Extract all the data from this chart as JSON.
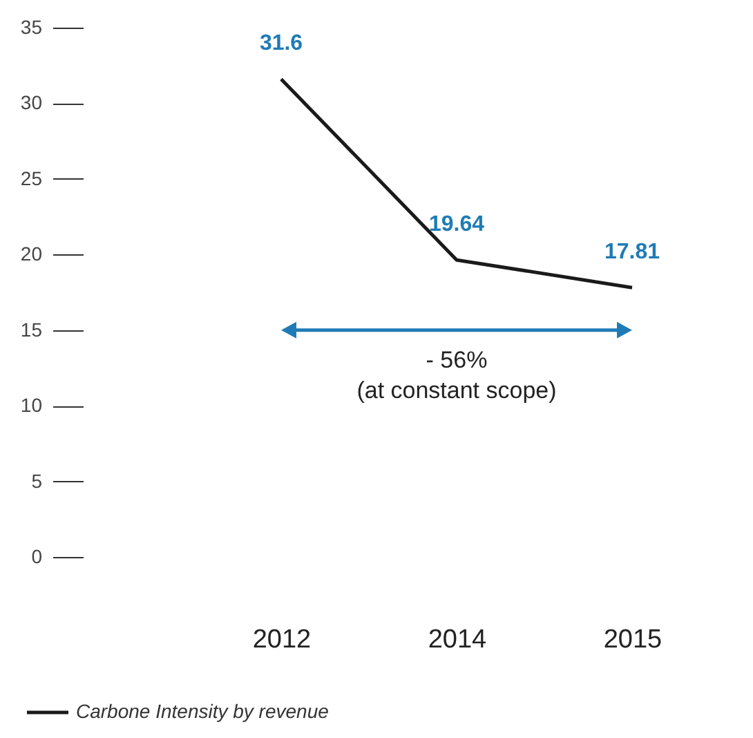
{
  "chart_data": {
    "type": "line",
    "categories": [
      "2012",
      "2014",
      "2015"
    ],
    "series": [
      {
        "name": "Carbone Intensity by revenue",
        "color": "#1a1a1a",
        "values": [
          31.6,
          19.64,
          17.81
        ]
      }
    ],
    "ylim": [
      0,
      35
    ],
    "yticks": [
      0,
      5,
      10,
      15,
      20,
      25,
      30,
      35
    ],
    "grid": false,
    "legend": "bottom left",
    "data_labels": true,
    "marker": "none",
    "line_style": "solid",
    "ref_lines": [
      {
        "axis": "y",
        "value": 15,
        "label": "- 56%\n(at constant scope)",
        "color": "#1f7bb6"
      }
    ]
  }
}
